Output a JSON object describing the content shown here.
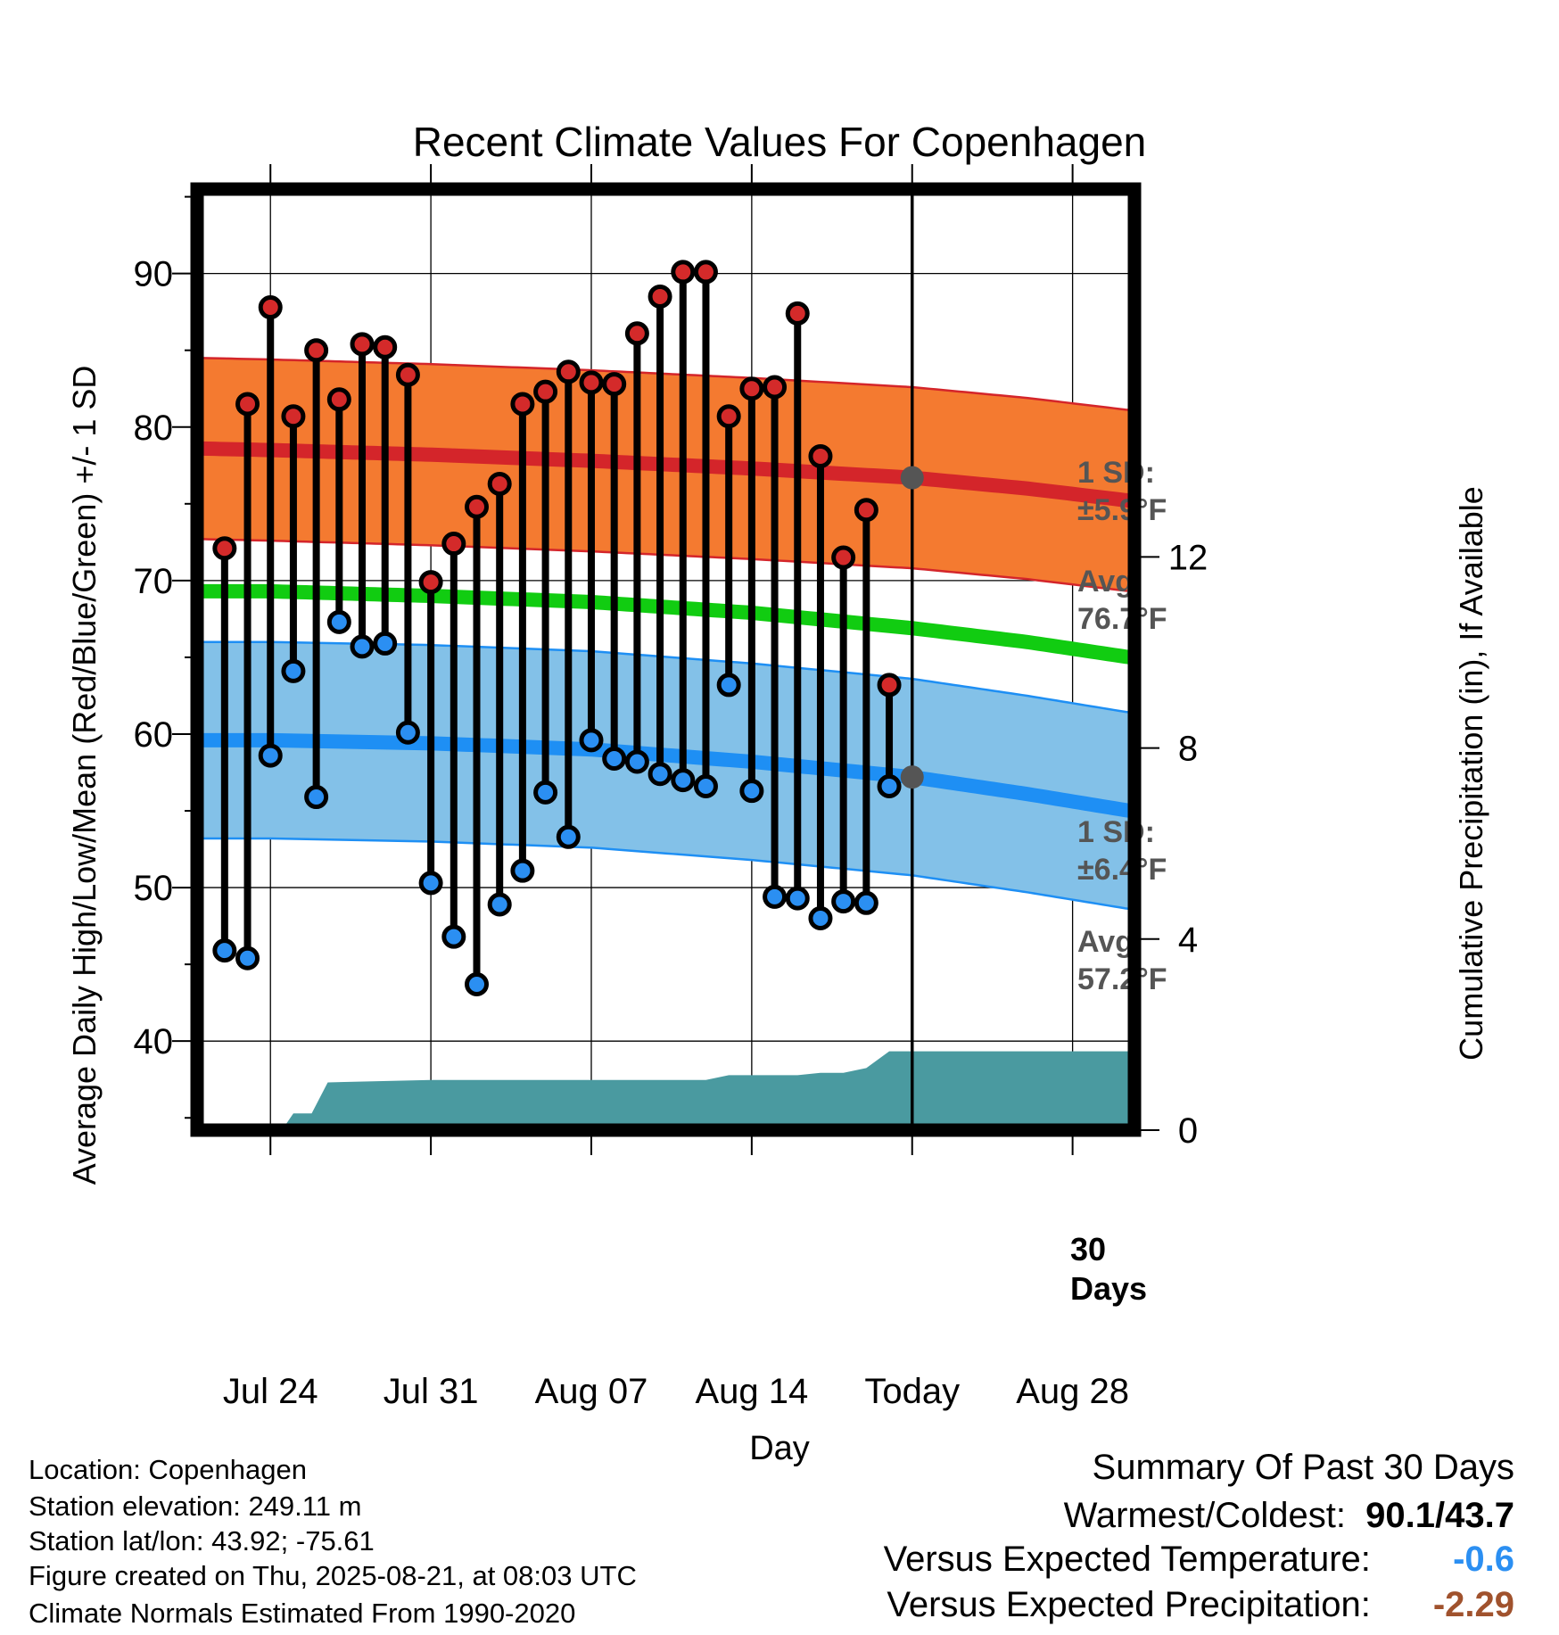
{
  "title": "Recent Climate Values For Copenhagen",
  "ylabel": "Average Daily High/Low/Mean (Red/Blue/Green) +/- 1 SD",
  "y2label": "Cumulative Precipitation (in), If Available",
  "xlabel": "Day",
  "high_sd_label": "1 SD:",
  "high_sd_value": "±5.9°F",
  "high_avg_label": "Avg:",
  "high_avg_value": "76.7°F",
  "low_sd_label": "1 SD:",
  "low_sd_value": "±6.4°F",
  "low_avg_label": "Avg:",
  "low_avg_value": "57.2°F",
  "days_label_num": "30",
  "days_label_word": "Days",
  "footer": {
    "location": "Location: Copenhagen",
    "elevation": "Station elevation: 249.11 m",
    "latlon": "Station lat/lon: 43.92; -75.61",
    "created": "Figure created on Thu, 2025-08-21, at 08:03 UTC",
    "normals": "Climate Normals Estimated From 1990-2020"
  },
  "summary": {
    "heading": "Summary Of Past 30 Days",
    "warm_cold_label": "Warmest/Coldest:",
    "warm_cold_value": "90.1/43.7",
    "temp_label": "Versus Expected Temperature:",
    "temp_value": "-0.6",
    "precip_label": "Versus Expected Precipitation:",
    "precip_value": "-2.29"
  },
  "colors": {
    "high_band": "#f47a30",
    "high_line": "#d4252a",
    "mean_line": "#11cc11",
    "low_band": "#83c1e8",
    "low_line": "#1e8ff4",
    "precip_fill": "#4a9aa0",
    "high_marker": "#d42a2a",
    "low_marker": "#2b8ff2",
    "temp_value": "#2b8ff2",
    "precip_value": "#a0522d",
    "today_marker": "#555555"
  },
  "chart_data": {
    "type": "line",
    "x_axis": {
      "range_days": [
        -31.2,
        9.7
      ],
      "ticks": [
        {
          "offset": -28,
          "label": "Jul 24"
        },
        {
          "offset": -21,
          "label": "Jul 31"
        },
        {
          "offset": -14,
          "label": "Aug 07"
        },
        {
          "offset": -7,
          "label": "Aug 14"
        },
        {
          "offset": 0,
          "label": "Today"
        },
        {
          "offset": 7,
          "label": "Aug 28"
        }
      ]
    },
    "y_axis": {
      "range": [
        34.2,
        95.5
      ],
      "ticks": [
        40,
        50,
        60,
        70,
        80,
        90
      ]
    },
    "y2_axis": {
      "range": [
        0,
        19.7
      ],
      "ticks": [
        0,
        4,
        8,
        12
      ]
    },
    "grid": true,
    "today_offset": 0,
    "normal_high": {
      "offsets": [
        -31,
        -28,
        -21,
        -14,
        -7,
        0,
        5,
        9.5
      ],
      "values": [
        78.6,
        78.5,
        78.2,
        77.8,
        77.3,
        76.7,
        76.0,
        75.2
      ]
    },
    "normal_high_sd": 5.9,
    "normal_mean": {
      "offsets": [
        -31,
        -28,
        -21,
        -14,
        -7,
        0,
        5,
        9.5
      ],
      "values": [
        69.3,
        69.3,
        69.0,
        68.6,
        67.9,
        66.9,
        66.0,
        65.0
      ]
    },
    "normal_low": {
      "offsets": [
        -31,
        -28,
        -21,
        -14,
        -7,
        0,
        5,
        9.5
      ],
      "values": [
        59.6,
        59.6,
        59.4,
        59.0,
        58.2,
        57.2,
        56.1,
        55.0
      ]
    },
    "normal_low_sd": 6.4,
    "daily_highs": [
      72.1,
      81.5,
      87.8,
      80.7,
      85.0,
      81.8,
      85.4,
      85.2,
      83.4,
      69.9,
      72.4,
      74.8,
      76.3,
      81.5,
      82.3,
      83.6,
      82.9,
      82.8,
      86.1,
      88.5,
      90.1,
      90.1,
      80.7,
      82.5,
      82.6,
      87.4,
      78.1,
      71.5,
      74.6,
      63.2
    ],
    "daily_lows": [
      45.9,
      45.4,
      58.6,
      64.1,
      55.9,
      67.3,
      65.7,
      65.9,
      60.1,
      50.3,
      46.8,
      43.7,
      48.9,
      51.1,
      56.2,
      53.3,
      59.6,
      58.4,
      58.2,
      57.4,
      57.0,
      56.6,
      63.2,
      56.3,
      49.4,
      49.3,
      48.0,
      49.1,
      49.0,
      56.6
    ],
    "daily_offsets_start": -30,
    "precip_cumulative": {
      "offsets": [
        -31.2,
        -27.5,
        -27,
        -26.2,
        -25.5,
        -21,
        -14,
        -9,
        -8,
        -7,
        -5,
        -4,
        -3,
        -2,
        -1,
        0,
        9.7
      ],
      "values": [
        0,
        0,
        0.35,
        0.35,
        1.0,
        1.05,
        1.05,
        1.05,
        1.15,
        1.15,
        1.15,
        1.2,
        1.2,
        1.3,
        1.65,
        1.65,
        1.65
      ]
    }
  }
}
